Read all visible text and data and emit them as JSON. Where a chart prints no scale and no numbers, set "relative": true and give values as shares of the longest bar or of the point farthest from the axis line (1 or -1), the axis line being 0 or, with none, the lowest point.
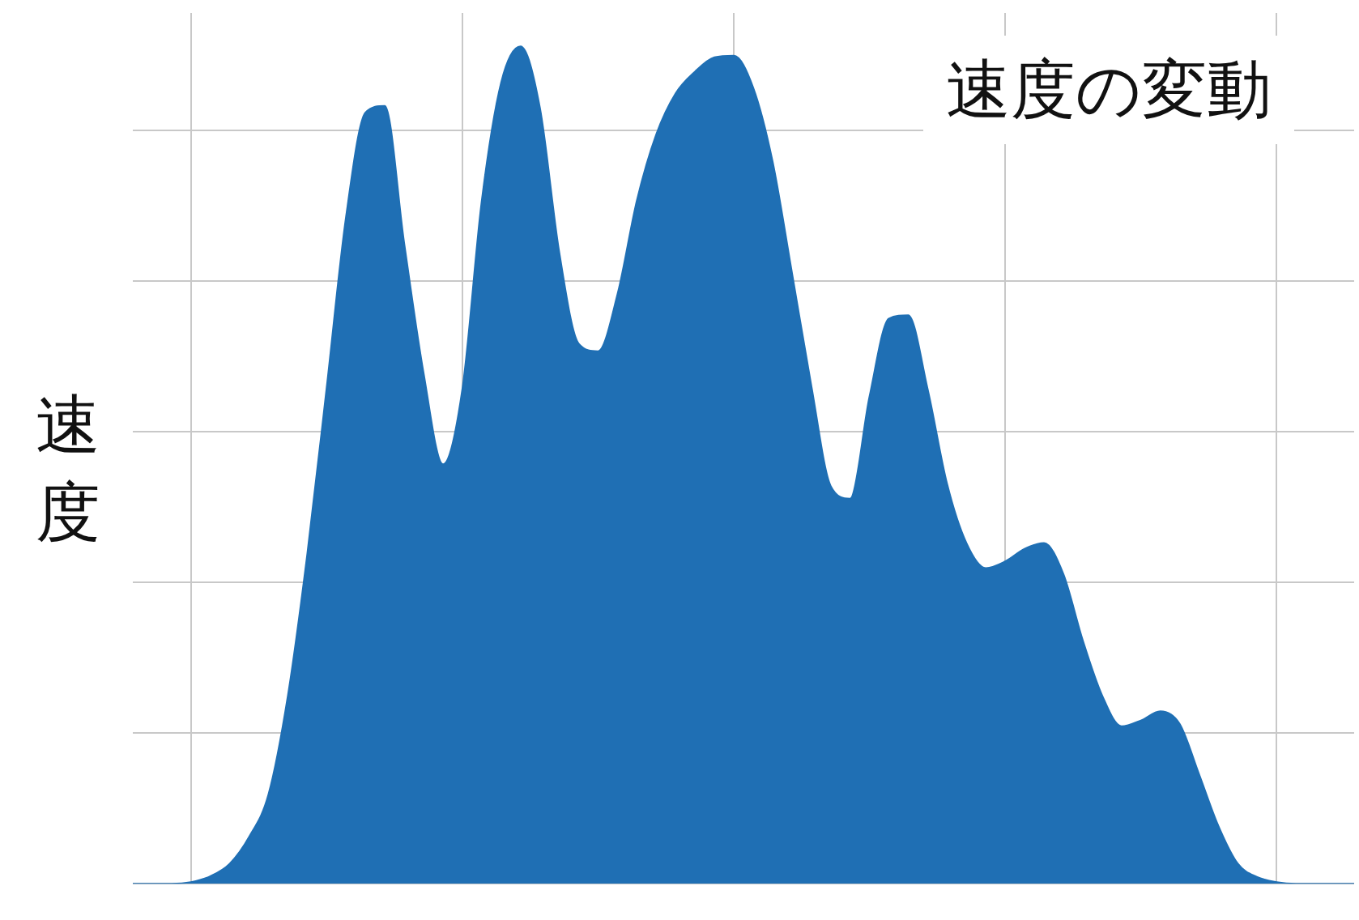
{
  "chart_data": {
    "type": "area",
    "title": "速度の変動",
    "ylabel": "速度",
    "relative": true,
    "grid": true,
    "legend": false,
    "categories": [
      null,
      null,
      null,
      null,
      null,
      null,
      null,
      null,
      null,
      null,
      null,
      null,
      null,
      null,
      null,
      null,
      null,
      null,
      null,
      null,
      null,
      null,
      null,
      null,
      null,
      null,
      null,
      null,
      null,
      null,
      null,
      null,
      null,
      null,
      null,
      null,
      null,
      null,
      null,
      null,
      null,
      null,
      null,
      null,
      null,
      null,
      null,
      null,
      null,
      null,
      null,
      null,
      null,
      null,
      null,
      null,
      null,
      null,
      null,
      null,
      null,
      null,
      null,
      null
    ],
    "series": [
      {
        "color": "#1f6fb4",
        "values": [
          0,
          0,
          0,
          0.002,
          0.009,
          0.024,
          0.056,
          0.107,
          0.225,
          0.394,
          0.593,
          0.797,
          0.921,
          0.929,
          0.765,
          0.61,
          0.501,
          0.591,
          0.816,
          0.957,
          1,
          0.927,
          0.754,
          0.645,
          0.636,
          0.704,
          0.816,
          0.895,
          0.944,
          0.97,
          0.987,
          0.989,
          0.951,
          0.863,
          0.73,
          0.595,
          0.475,
          0.46,
          0.582,
          0.675,
          0.679,
          0.591,
          0.478,
          0.407,
          0.377,
          0.385,
          0.4,
          0.407,
          0.37,
          0.291,
          0.225,
          0.188,
          0.195,
          0.206,
          0.191,
          0.131,
          0.069,
          0.024,
          0.008,
          0.002,
          0,
          0,
          0,
          0
        ]
      }
    ]
  }
}
